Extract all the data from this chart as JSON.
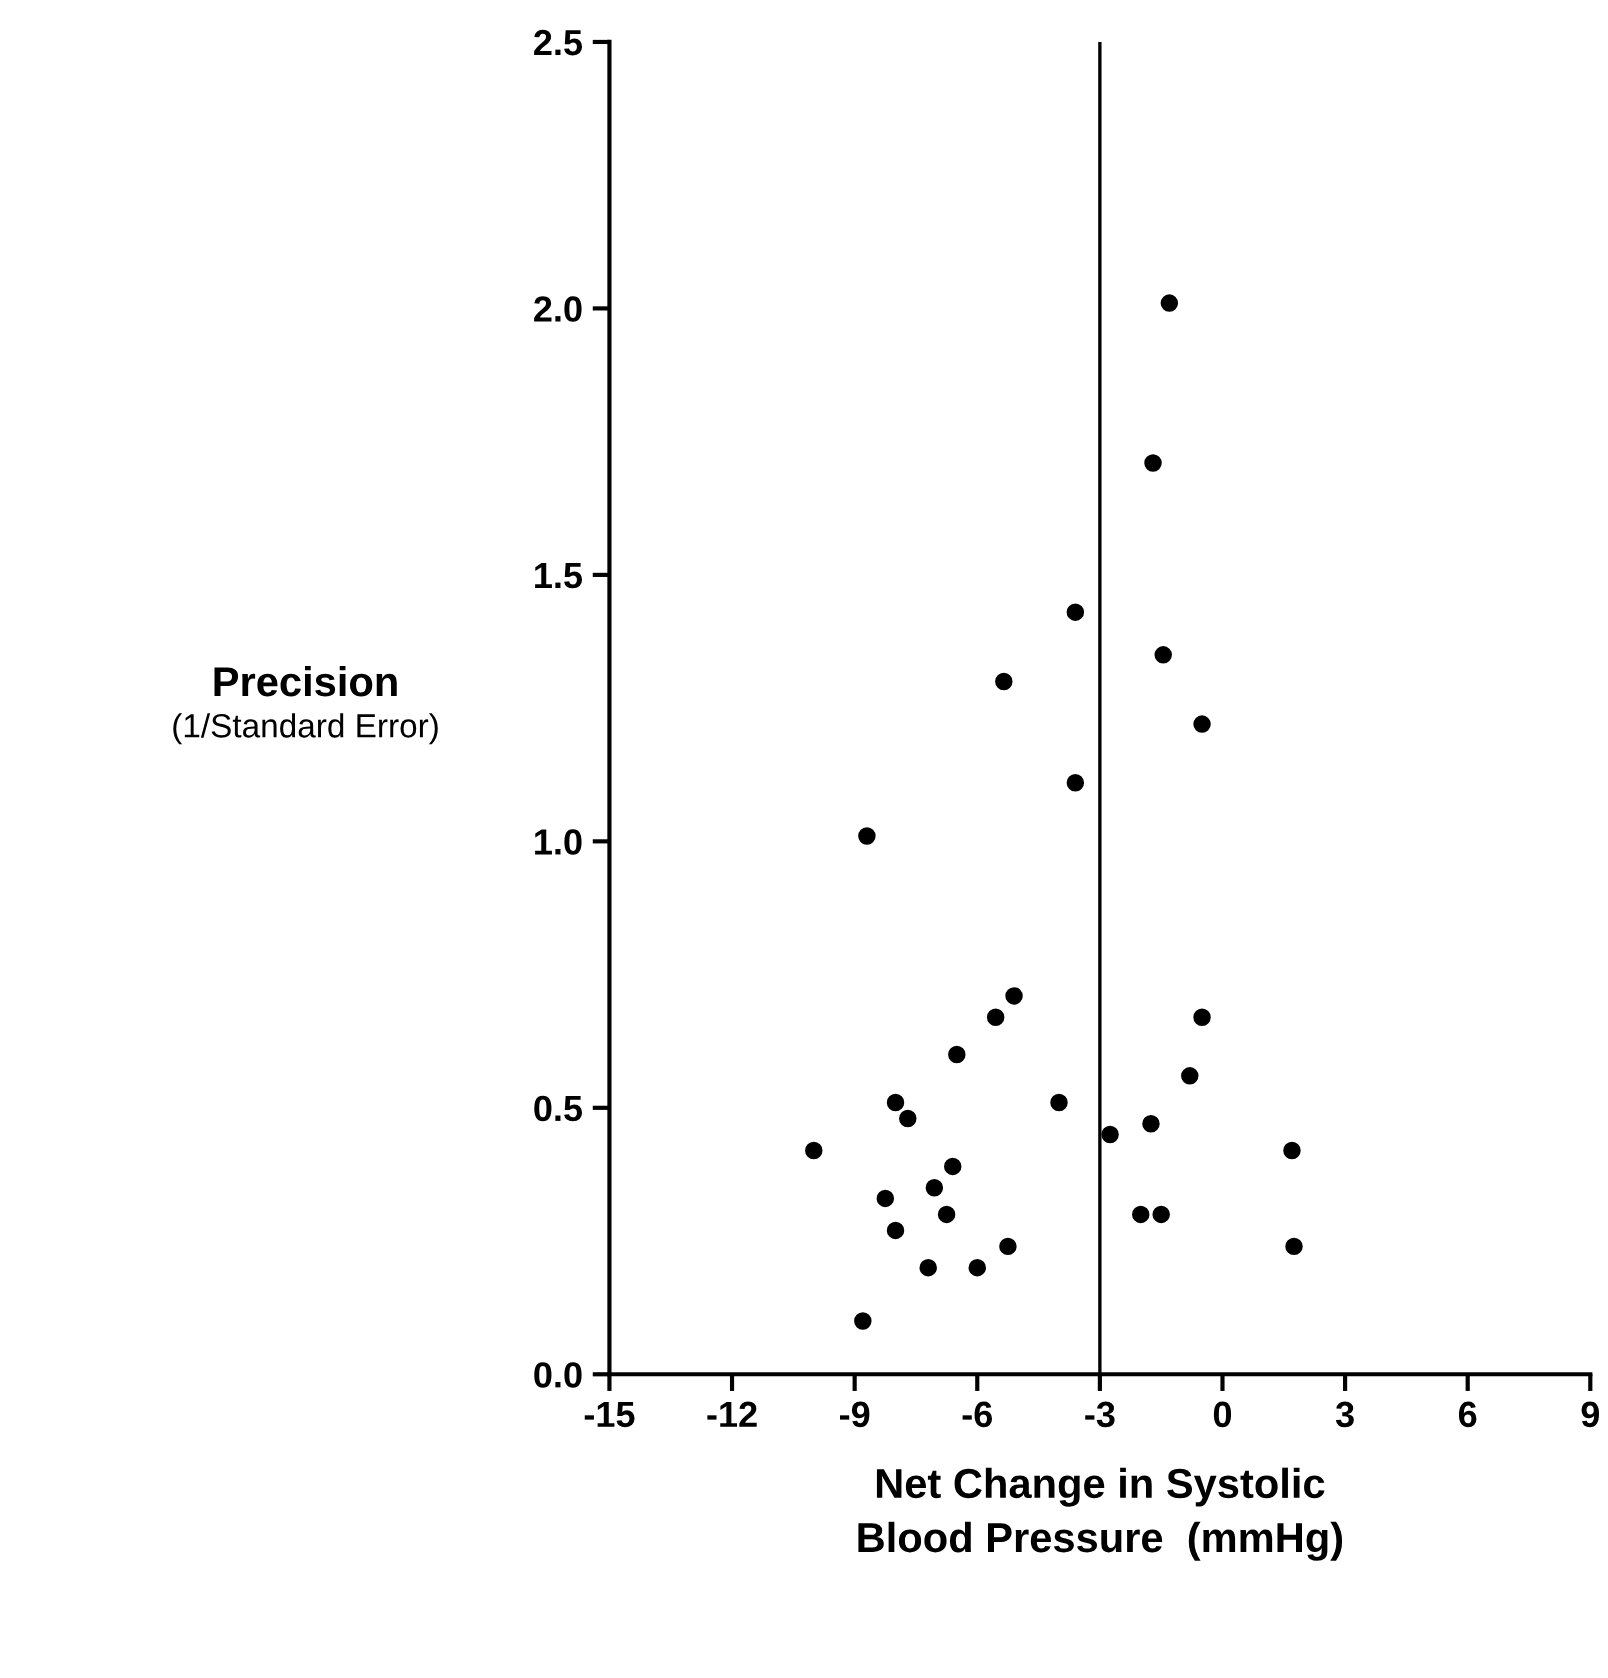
{
  "chart_data": {
    "type": "scatter",
    "xlabel": "Net Change in Systolic\nBlood Pressure  (mmHg)",
    "ylabel": "Precision\n(1/Standard Error)",
    "x": [
      -1.3,
      -1.7,
      -3.6,
      -1.45,
      -5.35,
      -0.5,
      -3.6,
      -8.7,
      -5.1,
      -5.55,
      -0.5,
      -6.5,
      -0.8,
      -8.0,
      -4.0,
      -7.7,
      -2.75,
      -1.75,
      -10.0,
      1.7,
      -6.6,
      -7.05,
      -8.25,
      -6.75,
      -2.0,
      -1.5,
      -8.0,
      -5.25,
      1.75,
      -7.2,
      -6.0,
      -8.8
    ],
    "values": [
      2.01,
      1.71,
      1.43,
      1.35,
      1.3,
      1.22,
      1.11,
      1.01,
      0.71,
      0.67,
      0.67,
      0.6,
      0.56,
      0.51,
      0.51,
      0.48,
      0.45,
      0.47,
      0.42,
      0.42,
      0.39,
      0.35,
      0.33,
      0.3,
      0.3,
      0.3,
      0.27,
      0.24,
      0.24,
      0.2,
      0.2,
      0.1
    ],
    "color": "#000000",
    "marker": "circle",
    "xlim": [
      -15,
      9
    ],
    "xticks": [
      -15,
      -12,
      -9,
      -6,
      -3,
      0,
      3,
      6,
      9
    ],
    "ylim": [
      0,
      2.5
    ],
    "yticks": [
      {
        "value": 0,
        "label": "0.0"
      },
      {
        "value": 0.5,
        "label": "0.5"
      },
      {
        "value": 1,
        "label": "1.0"
      },
      {
        "value": 1.5,
        "label": "1.5"
      },
      {
        "value": 2,
        "label": "2.0"
      },
      {
        "value": 2.5,
        "label": "2.5"
      }
    ],
    "ref_lines": [
      {
        "axis": "x",
        "value": -3,
        "color": "#000000"
      }
    ],
    "grid": false,
    "legend": false
  }
}
